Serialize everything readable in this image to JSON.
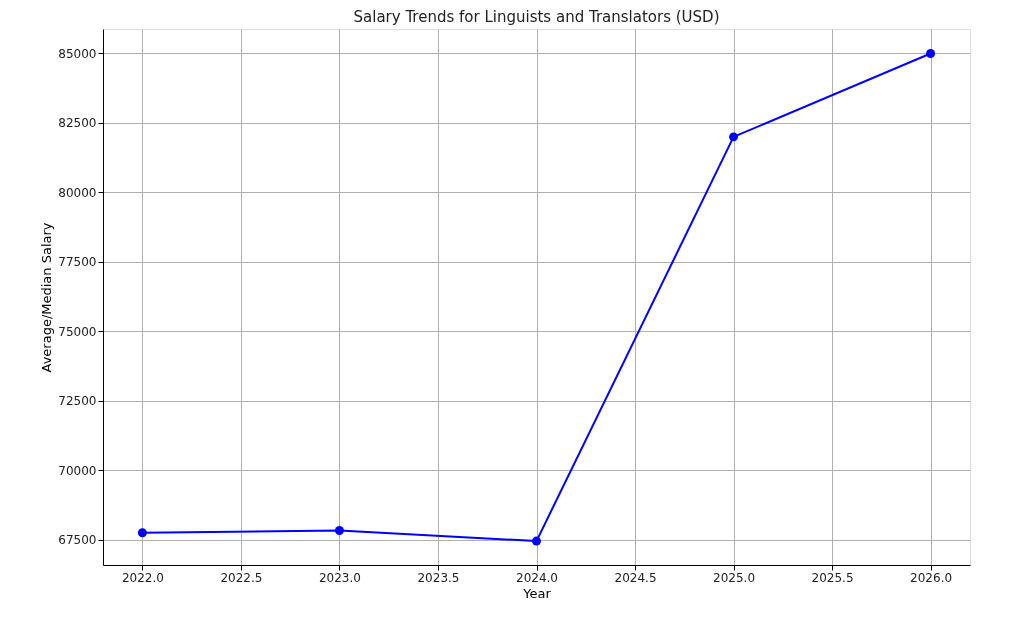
{
  "chart_data": {
    "type": "line",
    "title": "Salary Trends for Linguists and Translators (USD)",
    "xlabel": "Year",
    "ylabel": "Average/Median Salary",
    "x": [
      2022,
      2023,
      2024,
      2025,
      2026
    ],
    "series": [
      {
        "color": "#0000ff",
        "values": [
          67760,
          67840,
          67460,
          82000,
          85000
        ]
      }
    ],
    "xlim": [
      2021.8,
      2026.2
    ],
    "xticks": [
      {
        "value": 2022,
        "label": "2022.0"
      },
      {
        "value": 2022.5,
        "label": "2022.5"
      },
      {
        "value": 2023,
        "label": "2023.0"
      },
      {
        "value": 2023.5,
        "label": "2023.5"
      },
      {
        "value": 2024,
        "label": "2024.0"
      },
      {
        "value": 2024.5,
        "label": "2024.5"
      },
      {
        "value": 2025,
        "label": "2025.0"
      },
      {
        "value": 2025.5,
        "label": "2025.5"
      },
      {
        "value": 2026,
        "label": "2026.0"
      }
    ],
    "ylim": [
      66600,
      85880
    ],
    "yticks": [
      67500,
      70000,
      72500,
      75000,
      77500,
      80000,
      82500,
      85000
    ],
    "grid": true,
    "marker": "circle",
    "line_style": "solid"
  }
}
